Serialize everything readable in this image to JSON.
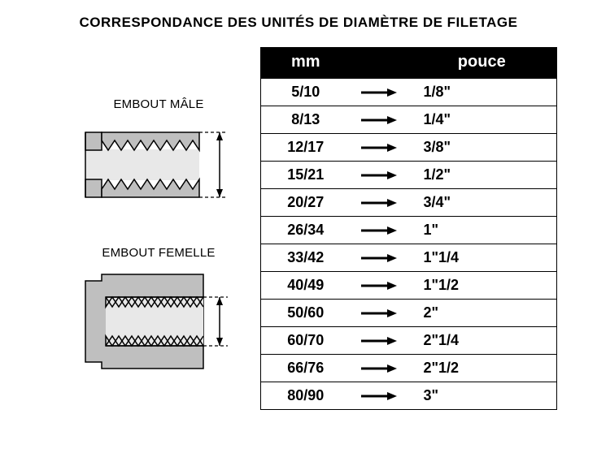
{
  "title": "CORRESPONDANCE DES UNITÉS DE DIAMÈTRE DE FILETAGE",
  "title_fontsize": 17,
  "labels": {
    "male": "EMBOUT MÂLE",
    "female": "EMBOUT FEMELLE",
    "label_fontsize": 15
  },
  "diagram_colors": {
    "fill": "#bfbfbf",
    "stroke": "#000000",
    "light_fill": "#e8e8e8"
  },
  "table": {
    "header_mm": "mm",
    "header_pouce": "pouce",
    "header_fontsize": 20,
    "cell_fontsize": 18,
    "header_bg": "#000000",
    "header_color": "#ffffff",
    "border_color": "#000000",
    "rows": [
      {
        "mm": "5/10",
        "pouce": "1/8\""
      },
      {
        "mm": "8/13",
        "pouce": "1/4\""
      },
      {
        "mm": "12/17",
        "pouce": "3/8\""
      },
      {
        "mm": "15/21",
        "pouce": "1/2\""
      },
      {
        "mm": "20/27",
        "pouce": "3/4\""
      },
      {
        "mm": "26/34",
        "pouce": "1\""
      },
      {
        "mm": "33/42",
        "pouce": "1\"1/4"
      },
      {
        "mm": "40/49",
        "pouce": "1\"1/2"
      },
      {
        "mm": "50/60",
        "pouce": "2\""
      },
      {
        "mm": "60/70",
        "pouce": "2\"1/4"
      },
      {
        "mm": "66/76",
        "pouce": "2\"1/2"
      },
      {
        "mm": "80/90",
        "pouce": "3\""
      }
    ]
  },
  "arrow": {
    "color": "#000000",
    "width": 48,
    "height": 14,
    "stroke_width": 3
  }
}
